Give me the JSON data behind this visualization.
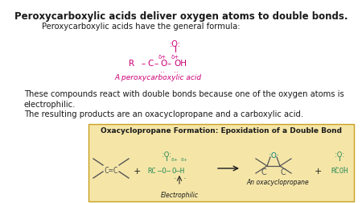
{
  "title": "Peroxycarboxylic acids deliver oxygen atoms to double bonds.",
  "bg_color": "#ffffff",
  "text_color": "#1a1a1a",
  "gray_color": "#555555",
  "magenta_color": "#cc0077",
  "green_color": "#2e8b57",
  "teal_color": "#008080",
  "box_bg": "#f5e6a8",
  "box_border": "#c8a020",
  "line1_text": "Peroxycarboxylic acids have the general formula:",
  "body_text1": "These compounds react with double bonds because one of the oxygen atoms is\nelectrophilic.",
  "body_text2": "The resulting products are an oxacyclopropane and a carboxylic acid.",
  "box_title": "Oxacyclopropane Formation: Epoxidation of a Double Bond"
}
